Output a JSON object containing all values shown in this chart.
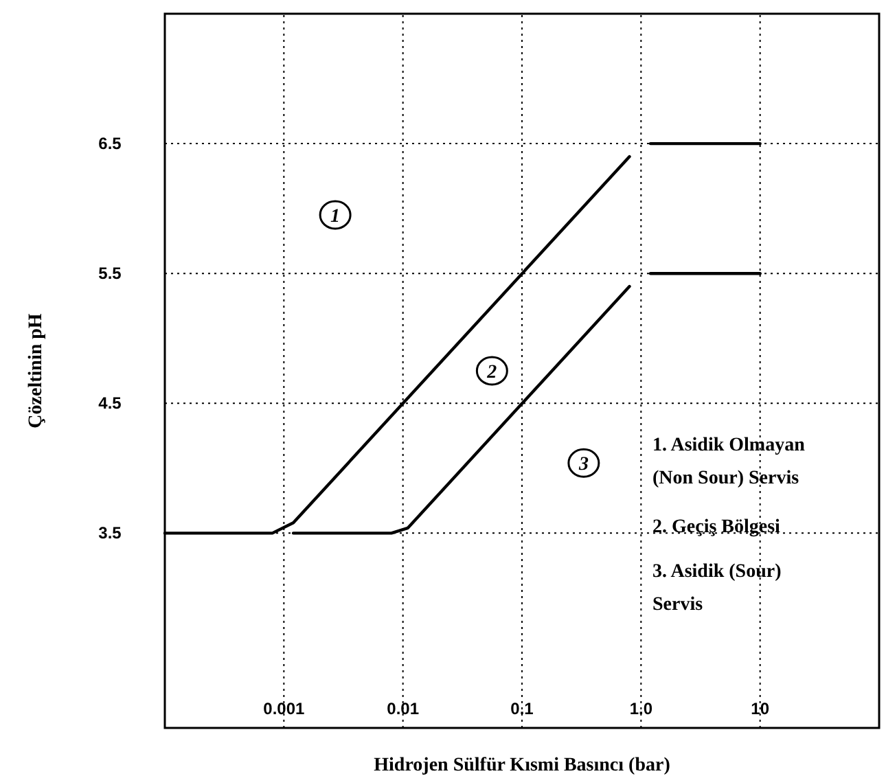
{
  "chart_data": {
    "type": "line",
    "xlabel": "Hidrojen Sülfür Kısmi Basıncı (bar)",
    "ylabel": "Çözeltinin pH",
    "log": "x",
    "xlim": [
      0.0001,
      100
    ],
    "ylim": [
      2,
      7.5
    ],
    "xticks": [
      0.001,
      0.01,
      0.1,
      {
        "value": 1,
        "label": "1.0"
      },
      10
    ],
    "yticks": [
      3.5,
      4.5,
      5.5,
      6.5
    ],
    "grid": true,
    "marker": "none",
    "line_style": "solid",
    "series": [
      {
        "color": "#000000",
        "x": [
          0.0001,
          0.0008,
          0.0012,
          0.8
        ],
        "values": [
          3.5,
          3.5,
          3.58,
          6.4
        ]
      },
      {
        "color": "#000000",
        "x": [
          0.0012,
          0.008,
          0.011,
          0.8
        ],
        "values": [
          3.5,
          3.5,
          3.54,
          5.4
        ]
      },
      {
        "color": "#000000",
        "x": [
          1.2,
          10
        ],
        "values": [
          6.5,
          6.5
        ]
      },
      {
        "color": "#000000",
        "x": [
          1.2,
          10
        ],
        "values": [
          5.5,
          5.5
        ]
      }
    ],
    "annotations": [
      {
        "text": "1",
        "x": 0.0027,
        "y": 5.95
      },
      {
        "text": "2",
        "x": 0.056,
        "y": 4.75
      },
      {
        "text": "3",
        "x": 0.33,
        "y": 4.04
      },
      "1. Asidik Olmayan (Non Sour) Servis",
      "2. Geçiş Bölgesi",
      "3. Asidik (Sour) Servis"
    ]
  }
}
